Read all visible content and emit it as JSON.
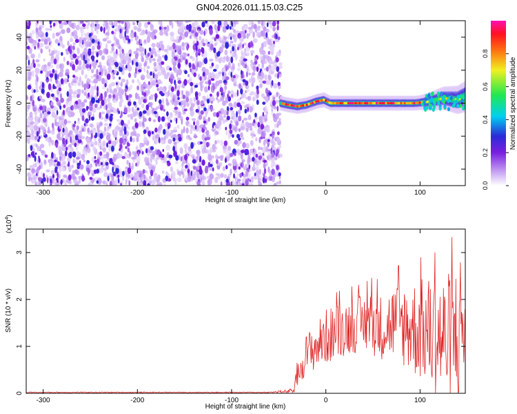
{
  "title": "GN04.2026.011.15.03.C25",
  "chart_data": [
    {
      "type": "heatmap",
      "title": "GN04.2026.011.15.03.C25",
      "xlabel": "Height of straight line (km)",
      "ylabel": "Frequency (Hz)",
      "xlim": [
        -318,
        148
      ],
      "ylim": [
        -50,
        50
      ],
      "x_ticks": [
        -300,
        -200,
        -100,
        0,
        100
      ],
      "y_ticks": [
        -40,
        -20,
        0,
        20,
        40
      ],
      "colorbar": {
        "label": "Normalized spectral amplitude",
        "ticks": [
          0.0,
          0.2,
          0.4,
          0.6,
          0.8
        ],
        "range": [
          0,
          1
        ],
        "colormap": "rainbow (white-purple-blue-cyan-green-yellow-red-magenta)"
      },
      "regions": [
        {
          "x_range": [
            -318,
            -48
          ],
          "description": "noise",
          "amplitude": [
            0.0,
            0.25
          ],
          "freq_range": [
            -50,
            50
          ]
        },
        {
          "x_range": [
            -48,
            148
          ],
          "description": "signal band near 0 Hz",
          "amplitude": [
            0.7,
            1.0
          ],
          "freq_range": [
            -4,
            4
          ]
        }
      ],
      "signal_ridge": {
        "x": [
          -48,
          -40,
          -30,
          -20,
          -10,
          -2,
          5,
          20,
          40,
          60,
          80,
          95,
          110,
          125,
          140,
          148
        ],
        "freq": [
          0,
          -1,
          -2,
          -1,
          1,
          2,
          0,
          0,
          0,
          0,
          0,
          0,
          1,
          3,
          2,
          4
        ]
      }
    },
    {
      "type": "line",
      "ylabel": "SNR (10 * v/v)",
      "xlabel": "Height of straight line (km)",
      "y_multiplier": "(x10",
      "y_multiplier_exp": "4",
      "xlim": [
        -318,
        148
      ],
      "ylim": [
        0,
        3.5
      ],
      "x_ticks": [
        -300,
        -200,
        -100,
        0,
        100
      ],
      "y_ticks": [
        0,
        1,
        2,
        3
      ],
      "series": [
        {
          "color": "#e02020",
          "x": [
            -318,
            -250,
            -150,
            -60,
            -35,
            -30,
            -25,
            -20,
            -10,
            0,
            10,
            20,
            30,
            40,
            50,
            60,
            70,
            80,
            90,
            100,
            110,
            120,
            130,
            140,
            148
          ],
          "y": [
            0.02,
            0.02,
            0.02,
            0.02,
            0.05,
            0.3,
            0.7,
            0.85,
            1.0,
            1.2,
            1.3,
            1.4,
            1.45,
            1.5,
            1.5,
            1.4,
            1.5,
            1.5,
            1.4,
            1.35,
            1.3,
            1.2,
            1.1,
            1.3,
            1.6
          ],
          "y_spread": [
            0.01,
            0.01,
            0.01,
            0.01,
            0.05,
            0.3,
            0.4,
            0.45,
            0.5,
            0.6,
            0.6,
            0.6,
            0.6,
            0.6,
            0.7,
            0.7,
            0.8,
            0.9,
            1.0,
            1.1,
            1.2,
            1.3,
            1.5,
            1.6,
            1.8
          ],
          "peak_max": 3.4
        }
      ]
    }
  ]
}
